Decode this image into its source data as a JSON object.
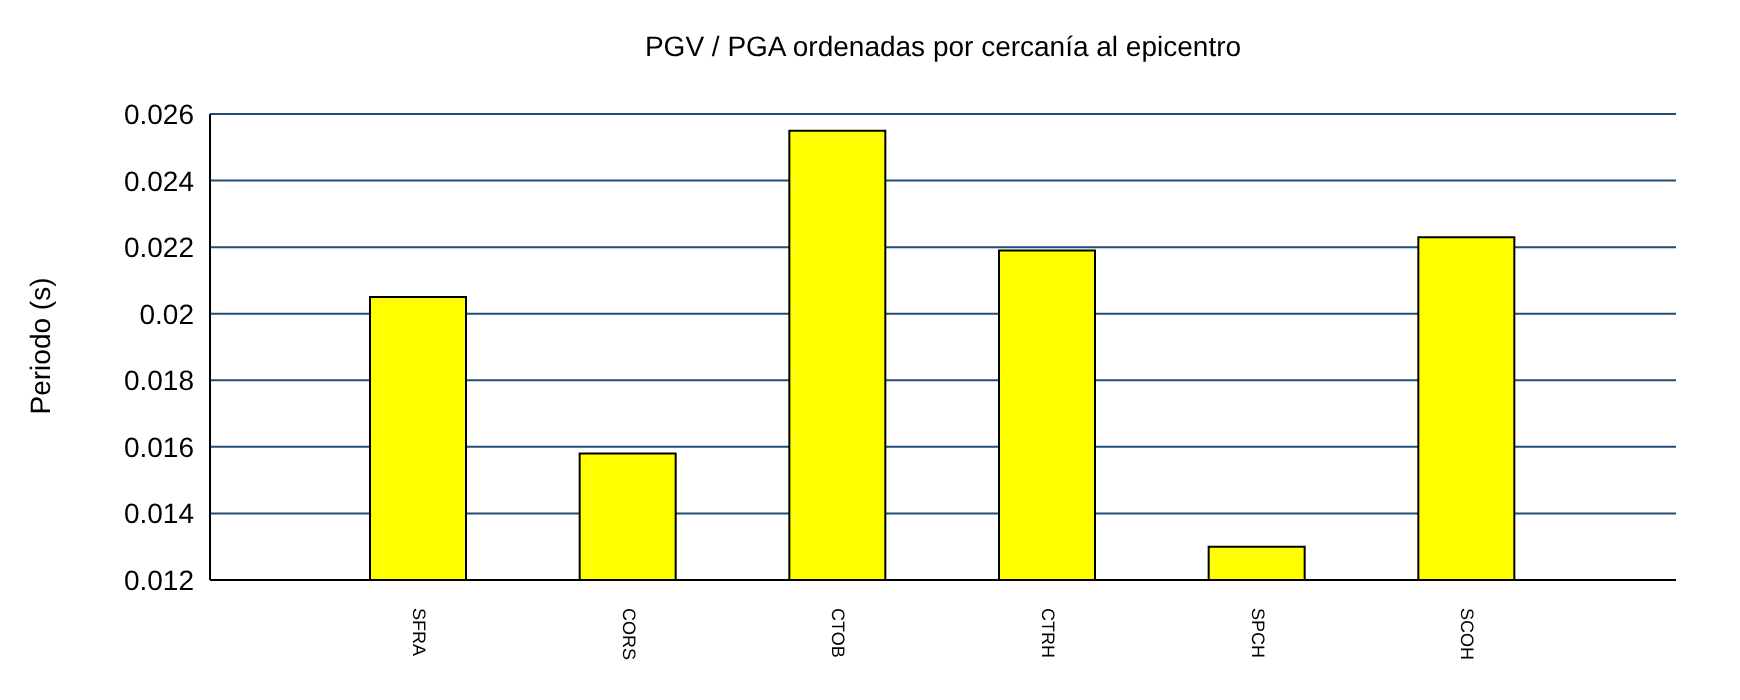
{
  "chart_data": {
    "type": "bar",
    "title": "PGV / PGA ordenadas por cercanía al epicentro",
    "ylabel": "Periodo (s)",
    "categories": [
      "SFRA",
      "CORS",
      "CTOB",
      "CTRH",
      "SPCH",
      "SCOH"
    ],
    "values": [
      0.0205,
      0.0158,
      0.0255,
      0.0219,
      0.013,
      0.0223
    ],
    "color": "#ffff00",
    "ylim": [
      0.012,
      0.026
    ],
    "yticks": [
      0.012,
      0.014,
      0.016,
      0.018,
      0.02,
      0.022,
      0.024,
      0.026
    ],
    "grid": "y"
  }
}
